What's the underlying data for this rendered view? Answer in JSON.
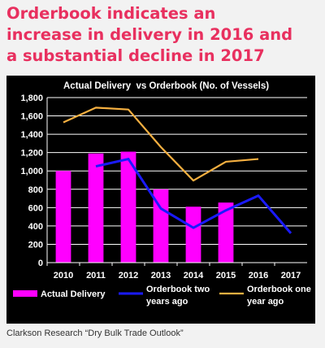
{
  "headline": {
    "line1": "Orderbook indicates an",
    "line2": "increase in delivery in 2016 and",
    "line3": "a substantial decline in 2017"
  },
  "source_note": "Clarkson Research “Dry Bulk Trade Outlook”",
  "colors": {
    "headline": "#e8305f",
    "bars": "#ff00ff",
    "orderbook_two_years_ago": "#1a1aff",
    "orderbook_one_year_ago": "#f5b041",
    "panel_background": "#000000",
    "text": "#ffffff"
  },
  "chart_data": {
    "type": "bar",
    "title": "Actual Delivery  vs Orderbook (No. of Vessels)",
    "categories": [
      "2010",
      "2011",
      "2012",
      "2013",
      "2014",
      "2015",
      "2016",
      "2017"
    ],
    "ylim": [
      0,
      1800
    ],
    "yticks": [
      "0",
      "200",
      "400",
      "600",
      "800",
      "1,000",
      "1,200",
      "1,400",
      "1,600",
      "1,800"
    ],
    "grid": true,
    "legend_position": "bottom",
    "series": [
      {
        "name": "Actual Delivery",
        "type": "bar",
        "values": [
          1000,
          1190,
          1210,
          800,
          610,
          655,
          null,
          null
        ]
      },
      {
        "name": "Orderbook two years ago",
        "type": "line",
        "values": [
          null,
          1050,
          1130,
          590,
          380,
          570,
          730,
          320
        ]
      },
      {
        "name": "Orderbook one year ago",
        "type": "line",
        "values": [
          1530,
          1690,
          1670,
          1260,
          895,
          1100,
          1130,
          null
        ]
      }
    ]
  }
}
